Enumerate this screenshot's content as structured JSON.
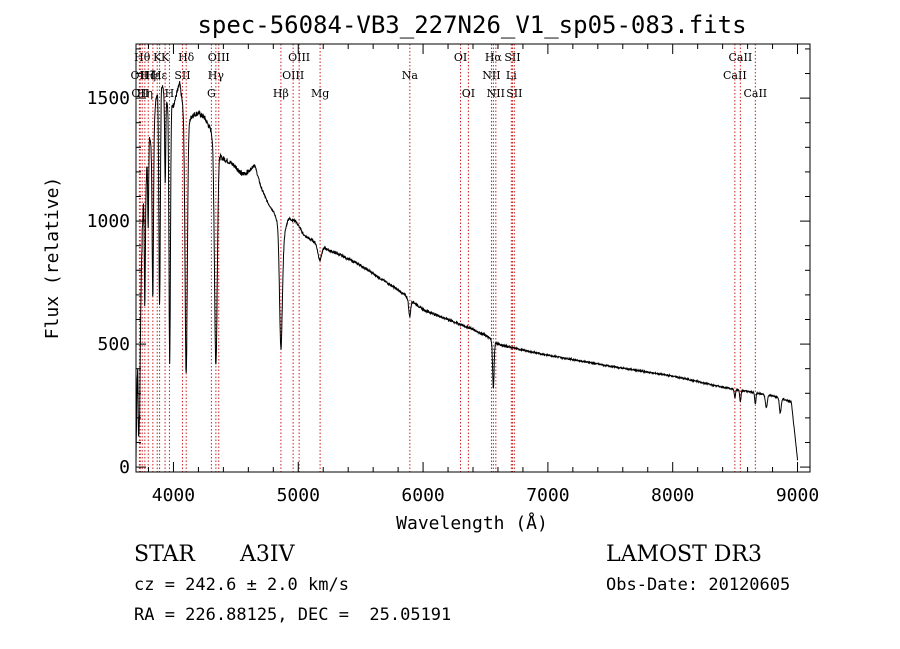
{
  "chart_data": {
    "type": "line",
    "title": "spec-56084-VB3_227N26_V1_sp05-083.fits",
    "xlabel": "Wavelength (Å)",
    "ylabel": "Flux (relative)",
    "xlim": [
      3700,
      9100
    ],
    "ylim": [
      -20,
      1720
    ],
    "xticks": [
      4000,
      5000,
      6000,
      7000,
      8000,
      9000
    ],
    "yticks": [
      0,
      500,
      1000,
      1500
    ],
    "line_color": "#000000",
    "marker_color": "#cc2020",
    "continuum": [
      [
        3700,
        20
      ],
      [
        3715,
        600
      ],
      [
        3730,
        260
      ],
      [
        3750,
        1220
      ],
      [
        3770,
        1000
      ],
      [
        3800,
        1400
      ],
      [
        3830,
        1250
      ],
      [
        3860,
        1500
      ],
      [
        3900,
        1580
      ],
      [
        3930,
        1500
      ],
      [
        3960,
        1480
      ],
      [
        4000,
        1470
      ],
      [
        4050,
        1560
      ],
      [
        4100,
        1380
      ],
      [
        4150,
        1430
      ],
      [
        4200,
        1440
      ],
      [
        4250,
        1420
      ],
      [
        4300,
        1370
      ],
      [
        4330,
        1330
      ],
      [
        4380,
        1260
      ],
      [
        4450,
        1240
      ],
      [
        4500,
        1220
      ],
      [
        4550,
        1190
      ],
      [
        4600,
        1200
      ],
      [
        4650,
        1230
      ],
      [
        4700,
        1140
      ],
      [
        4750,
        1080
      ],
      [
        4800,
        1040
      ],
      [
        4850,
        980
      ],
      [
        4880,
        930
      ],
      [
        4920,
        1010
      ],
      [
        4980,
        1000
      ],
      [
        5050,
        940
      ],
      [
        5150,
        910
      ],
      [
        5250,
        880
      ],
      [
        5350,
        860
      ],
      [
        5500,
        820
      ],
      [
        5650,
        770
      ],
      [
        5800,
        720
      ],
      [
        5900,
        680
      ],
      [
        6000,
        640
      ],
      [
        6200,
        600
      ],
      [
        6400,
        560
      ],
      [
        6500,
        535
      ],
      [
        6600,
        500
      ],
      [
        6800,
        475
      ],
      [
        7000,
        455
      ],
      [
        7500,
        410
      ],
      [
        8000,
        370
      ],
      [
        8400,
        325
      ],
      [
        8800,
        290
      ],
      [
        8950,
        265
      ],
      [
        9000,
        30
      ]
    ],
    "absorption_features": [
      {
        "center": 3720,
        "depth": 350,
        "width": 5
      },
      {
        "center": 3750,
        "depth": 250,
        "width": 5
      },
      {
        "center": 3771,
        "depth": 350,
        "width": 4
      },
      {
        "center": 3798,
        "depth": 400,
        "width": 4
      },
      {
        "center": 3835,
        "depth": 600,
        "width": 5
      },
      {
        "center": 3889,
        "depth": 900,
        "width": 6
      },
      {
        "center": 3934,
        "depth": 350,
        "width": 4
      },
      {
        "center": 3970,
        "depth": 1050,
        "width": 6
      },
      {
        "center": 4102,
        "depth": 1000,
        "width": 9
      },
      {
        "center": 4340,
        "depth": 900,
        "width": 11
      },
      {
        "center": 4861,
        "depth": 480,
        "width": 11
      },
      {
        "center": 5172,
        "depth": 60,
        "width": 15
      },
      {
        "center": 5893,
        "depth": 70,
        "width": 8
      },
      {
        "center": 6563,
        "depth": 190,
        "width": 6
      },
      {
        "center": 8498,
        "depth": 35,
        "width": 5
      },
      {
        "center": 8542,
        "depth": 45,
        "width": 5
      },
      {
        "center": 8662,
        "depth": 45,
        "width": 5
      },
      {
        "center": 8750,
        "depth": 50,
        "width": 8
      },
      {
        "center": 8862,
        "depth": 60,
        "width": 7
      }
    ],
    "lines": [
      {
        "wave": 3727,
        "label": "OII",
        "row": 1
      },
      {
        "wave": 3734,
        "label": "OII",
        "row": 2
      },
      {
        "wave": 3750,
        "label": "Hθ",
        "row": 0
      },
      {
        "wave": 3771,
        "label": "Hη",
        "row": 2
      },
      {
        "wave": 3798,
        "label": "Hζ",
        "row": 1
      },
      {
        "wave": 3835,
        "label": "Hε",
        "row": 1
      },
      {
        "wave": 3870,
        "label": "K",
        "row": 0
      },
      {
        "wave": 3889,
        "label": "Hε",
        "row": 1
      },
      {
        "wave": 3933,
        "label": "K",
        "row": 0
      },
      {
        "wave": 3968,
        "label": "H",
        "row": 2
      },
      {
        "wave": 4072,
        "label": "SII",
        "row": 1
      },
      {
        "wave": 4102,
        "label": "Hδ",
        "row": 0
      },
      {
        "wave": 4304,
        "label": "G",
        "row": 2
      },
      {
        "wave": 4340,
        "label": "Hγ",
        "row": 1
      },
      {
        "wave": 4363,
        "label": "OIII",
        "row": 0
      },
      {
        "wave": 4861,
        "label": "Hβ",
        "row": 2
      },
      {
        "wave": 4959,
        "label": "OIII",
        "row": 1
      },
      {
        "wave": 5007,
        "label": "OIII",
        "row": 0
      },
      {
        "wave": 5175,
        "label": "Mg",
        "row": 2
      },
      {
        "wave": 5894,
        "label": "Na",
        "row": 1
      },
      {
        "wave": 6300,
        "label": "OI",
        "row": 0
      },
      {
        "wave": 6363,
        "label": "OI",
        "row": 2
      },
      {
        "wave": 6548,
        "label": "NII",
        "row": 1
      },
      {
        "wave": 6563,
        "label": "Hα",
        "row": 0
      },
      {
        "wave": 6583,
        "label": "NII",
        "row": 2
      },
      {
        "wave": 6707,
        "label": "Li",
        "row": 1
      },
      {
        "wave": 6716,
        "label": "SII",
        "row": 0
      },
      {
        "wave": 6731,
        "label": "SII",
        "row": 2
      },
      {
        "wave": 8498,
        "label": "CaII",
        "row": 1
      },
      {
        "wave": 8542,
        "label": "CaII",
        "row": 0
      },
      {
        "wave": 8662,
        "label": "CaII",
        "row": 2
      }
    ]
  },
  "info": {
    "object_type": "STAR",
    "spectral_class": "A3IV",
    "survey": "LAMOST DR3",
    "redshift": "cz = 242.6 ± 2.0 km/s",
    "obs_date": "Obs-Date: 20120605",
    "coordinates": "RA = 226.88125, DEC =  25.05191"
  }
}
